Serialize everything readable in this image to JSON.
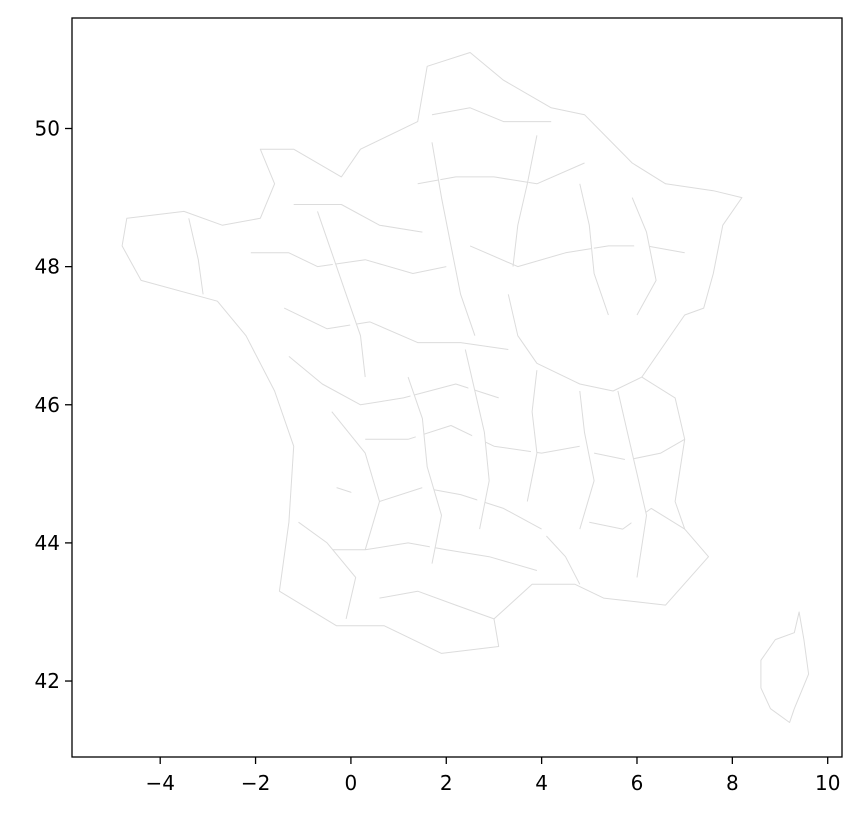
{
  "chart_data": {
    "type": "map",
    "title": "",
    "xlabel": "",
    "ylabel": "",
    "xlim": [
      -5.85,
      10.3
    ],
    "ylim": [
      40.9,
      51.6
    ],
    "xticks": [
      -4,
      -2,
      0,
      2,
      4,
      6,
      8,
      10
    ],
    "xtick_labels": [
      "−4",
      "−2",
      "0",
      "2",
      "4",
      "6",
      "8",
      "10"
    ],
    "yticks": [
      42,
      44,
      46,
      48,
      50
    ],
    "ytick_labels": [
      "42",
      "44",
      "46",
      "48",
      "50"
    ],
    "grid": false,
    "legend": "none",
    "colors": {
      "boundary": "#dcdcdc",
      "fill": "#ffffff",
      "axes": "#000000"
    },
    "outline": [
      [
        2.5,
        51.1
      ],
      [
        3.2,
        50.7
      ],
      [
        4.2,
        50.3
      ],
      [
        4.9,
        50.2
      ],
      [
        5.9,
        49.5
      ],
      [
        6.6,
        49.2
      ],
      [
        7.6,
        49.1
      ],
      [
        8.2,
        49.0
      ],
      [
        7.8,
        48.6
      ],
      [
        7.6,
        47.9
      ],
      [
        7.4,
        47.4
      ],
      [
        7.0,
        47.3
      ],
      [
        6.6,
        46.9
      ],
      [
        6.1,
        46.4
      ],
      [
        6.8,
        46.1
      ],
      [
        7.0,
        45.5
      ],
      [
        6.8,
        44.6
      ],
      [
        7.0,
        44.2
      ],
      [
        7.5,
        43.8
      ],
      [
        6.6,
        43.1
      ],
      [
        5.3,
        43.2
      ],
      [
        4.7,
        43.4
      ],
      [
        3.8,
        43.4
      ],
      [
        3.0,
        42.9
      ],
      [
        3.1,
        42.5
      ],
      [
        1.9,
        42.4
      ],
      [
        0.7,
        42.8
      ],
      [
        -0.3,
        42.8
      ],
      [
        -1.5,
        43.3
      ],
      [
        -1.3,
        44.3
      ],
      [
        -1.2,
        45.4
      ],
      [
        -1.6,
        46.2
      ],
      [
        -2.2,
        47.0
      ],
      [
        -2.8,
        47.5
      ],
      [
        -4.4,
        47.8
      ],
      [
        -4.8,
        48.3
      ],
      [
        -4.7,
        48.7
      ],
      [
        -3.5,
        48.8
      ],
      [
        -2.7,
        48.6
      ],
      [
        -1.9,
        48.7
      ],
      [
        -1.6,
        49.2
      ],
      [
        -1.9,
        49.7
      ],
      [
        -1.2,
        49.7
      ],
      [
        -0.2,
        49.3
      ],
      [
        0.2,
        49.7
      ],
      [
        1.4,
        50.1
      ],
      [
        1.6,
        50.9
      ]
    ],
    "corsica": [
      [
        9.4,
        43.0
      ],
      [
        9.5,
        42.6
      ],
      [
        9.6,
        42.1
      ],
      [
        9.3,
        41.6
      ],
      [
        9.2,
        41.4
      ],
      [
        8.8,
        41.6
      ],
      [
        8.6,
        41.9
      ],
      [
        8.6,
        42.3
      ],
      [
        8.9,
        42.6
      ],
      [
        9.3,
        42.7
      ]
    ],
    "internal_borders": [
      [
        [
          1.7,
          50.2
        ],
        [
          2.5,
          50.3
        ],
        [
          3.2,
          50.1
        ],
        [
          4.2,
          50.1
        ]
      ],
      [
        [
          1.4,
          49.2
        ],
        [
          2.2,
          49.3
        ],
        [
          3.0,
          49.3
        ],
        [
          3.9,
          49.2
        ],
        [
          4.9,
          49.5
        ]
      ],
      [
        [
          -1.2,
          48.9
        ],
        [
          -0.2,
          48.9
        ],
        [
          0.6,
          48.6
        ],
        [
          1.5,
          48.5
        ]
      ],
      [
        [
          -2.1,
          48.2
        ],
        [
          -1.3,
          48.2
        ],
        [
          -0.7,
          48.0
        ],
        [
          0.3,
          48.1
        ],
        [
          1.3,
          47.9
        ],
        [
          2.0,
          48.0
        ]
      ],
      [
        [
          2.5,
          48.3
        ],
        [
          3.5,
          48.0
        ],
        [
          4.5,
          48.2
        ],
        [
          5.4,
          48.3
        ],
        [
          6.2,
          48.3
        ],
        [
          7.0,
          48.2
        ]
      ],
      [
        [
          4.8,
          49.2
        ],
        [
          5.0,
          48.6
        ],
        [
          5.1,
          47.9
        ],
        [
          5.4,
          47.3
        ]
      ],
      [
        [
          -1.4,
          47.4
        ],
        [
          -0.5,
          47.1
        ],
        [
          0.4,
          47.2
        ],
        [
          1.4,
          46.9
        ],
        [
          2.3,
          46.9
        ],
        [
          3.3,
          46.8
        ]
      ],
      [
        [
          3.3,
          47.6
        ],
        [
          3.5,
          47.0
        ],
        [
          3.9,
          46.6
        ],
        [
          4.8,
          46.3
        ],
        [
          5.5,
          46.2
        ],
        [
          6.1,
          46.4
        ]
      ],
      [
        [
          -1.3,
          46.7
        ],
        [
          -0.6,
          46.3
        ],
        [
          0.2,
          46.0
        ],
        [
          1.1,
          46.1
        ],
        [
          2.2,
          46.3
        ],
        [
          3.1,
          46.1
        ]
      ],
      [
        [
          0.3,
          45.5
        ],
        [
          1.2,
          45.5
        ],
        [
          2.1,
          45.7
        ],
        [
          3.0,
          45.4
        ],
        [
          4.0,
          45.3
        ],
        [
          4.8,
          45.4
        ]
      ],
      [
        [
          4.8,
          46.2
        ],
        [
          4.9,
          45.6
        ],
        [
          5.1,
          44.9
        ],
        [
          4.8,
          44.2
        ]
      ],
      [
        [
          -0.3,
          44.8
        ],
        [
          0.6,
          44.6
        ],
        [
          1.5,
          44.8
        ],
        [
          2.3,
          44.7
        ],
        [
          3.2,
          44.5
        ],
        [
          4.0,
          44.2
        ]
      ],
      [
        [
          -0.5,
          43.9
        ],
        [
          0.3,
          43.9
        ],
        [
          1.2,
          44.0
        ],
        [
          2.0,
          43.9
        ],
        [
          2.9,
          43.8
        ],
        [
          3.9,
          43.6
        ]
      ],
      [
        [
          5.0,
          44.3
        ],
        [
          5.7,
          44.2
        ],
        [
          6.3,
          44.5
        ],
        [
          7.0,
          44.2
        ]
      ],
      [
        [
          5.1,
          45.3
        ],
        [
          5.8,
          45.2
        ],
        [
          6.5,
          45.3
        ],
        [
          7.0,
          45.5
        ]
      ],
      [
        [
          0.6,
          43.2
        ],
        [
          1.4,
          43.3
        ],
        [
          2.2,
          43.1
        ],
        [
          3.0,
          42.9
        ]
      ],
      [
        [
          -0.4,
          45.9
        ],
        [
          0.3,
          45.3
        ],
        [
          0.6,
          44.6
        ],
        [
          0.3,
          43.9
        ]
      ],
      [
        [
          1.7,
          49.8
        ],
        [
          1.9,
          49.0
        ],
        [
          2.1,
          48.3
        ],
        [
          2.3,
          47.6
        ],
        [
          2.6,
          47.0
        ]
      ],
      [
        [
          3.9,
          49.9
        ],
        [
          3.7,
          49.2
        ],
        [
          3.5,
          48.6
        ],
        [
          3.4,
          48.0
        ]
      ],
      [
        [
          5.9,
          49.0
        ],
        [
          6.2,
          48.5
        ],
        [
          6.4,
          47.8
        ],
        [
          6.0,
          47.3
        ]
      ],
      [
        [
          -3.4,
          48.7
        ],
        [
          -3.2,
          48.1
        ],
        [
          -3.1,
          47.6
        ]
      ],
      [
        [
          -0.7,
          48.8
        ],
        [
          -0.4,
          48.2
        ],
        [
          -0.1,
          47.6
        ],
        [
          0.2,
          47.0
        ],
        [
          0.3,
          46.4
        ]
      ],
      [
        [
          2.4,
          46.8
        ],
        [
          2.6,
          46.2
        ],
        [
          2.8,
          45.6
        ],
        [
          2.9,
          44.9
        ],
        [
          2.7,
          44.2
        ]
      ],
      [
        [
          1.2,
          46.4
        ],
        [
          1.5,
          45.8
        ],
        [
          1.6,
          45.1
        ],
        [
          1.9,
          44.4
        ],
        [
          1.7,
          43.7
        ]
      ],
      [
        [
          3.9,
          46.5
        ],
        [
          3.8,
          45.9
        ],
        [
          3.9,
          45.3
        ],
        [
          3.7,
          44.6
        ]
      ],
      [
        [
          5.6,
          46.2
        ],
        [
          5.8,
          45.6
        ],
        [
          6.0,
          45.0
        ],
        [
          6.2,
          44.4
        ],
        [
          6.0,
          43.5
        ]
      ],
      [
        [
          -1.1,
          44.3
        ],
        [
          -0.5,
          44.0
        ],
        [
          0.1,
          43.5
        ],
        [
          -0.1,
          42.9
        ]
      ],
      [
        [
          4.1,
          44.1
        ],
        [
          4.5,
          43.8
        ],
        [
          4.8,
          43.4
        ]
      ]
    ]
  }
}
